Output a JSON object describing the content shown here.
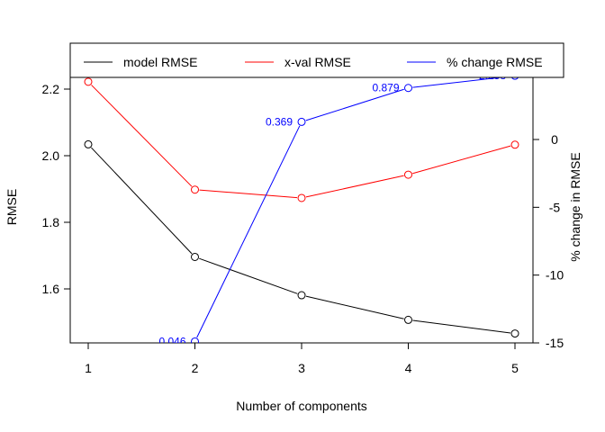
{
  "chart_data": {
    "type": "line",
    "xlabel": "Number of components",
    "ylabel": "RMSE",
    "ylabel_right": "% change in RMSE",
    "x": [
      1,
      2,
      3,
      4,
      5
    ],
    "xticks": [
      "1",
      "2",
      "3",
      "4",
      "5"
    ],
    "xlim": [
      0.99,
      5.01
    ],
    "ylim": [
      1.45,
      2.26
    ],
    "yticks": [
      "1.6",
      "1.8",
      "2.0",
      "2.2"
    ],
    "ylim_right": [
      -15,
      6.8
    ],
    "yticks_right": [
      "-15",
      "-10",
      "-5",
      "0"
    ],
    "legend_position": "top",
    "series": [
      {
        "name": "model RMSE",
        "color": "#000000",
        "axis": "left",
        "values": [
          2.034,
          1.696,
          1.581,
          1.507,
          1.466
        ]
      },
      {
        "name": "x-val RMSE",
        "color": "#ff0000",
        "axis": "left",
        "values": [
          2.222,
          1.898,
          1.873,
          1.943,
          2.033
        ]
      },
      {
        "name": "% change RMSE",
        "color": "#0000ff",
        "axis": "right",
        "values": [
          null,
          -14.9,
          1.3,
          3.8,
          4.7
        ],
        "point_labels": [
          null,
          "0.046",
          "0.369",
          "0.879",
          "2.258"
        ]
      }
    ]
  }
}
